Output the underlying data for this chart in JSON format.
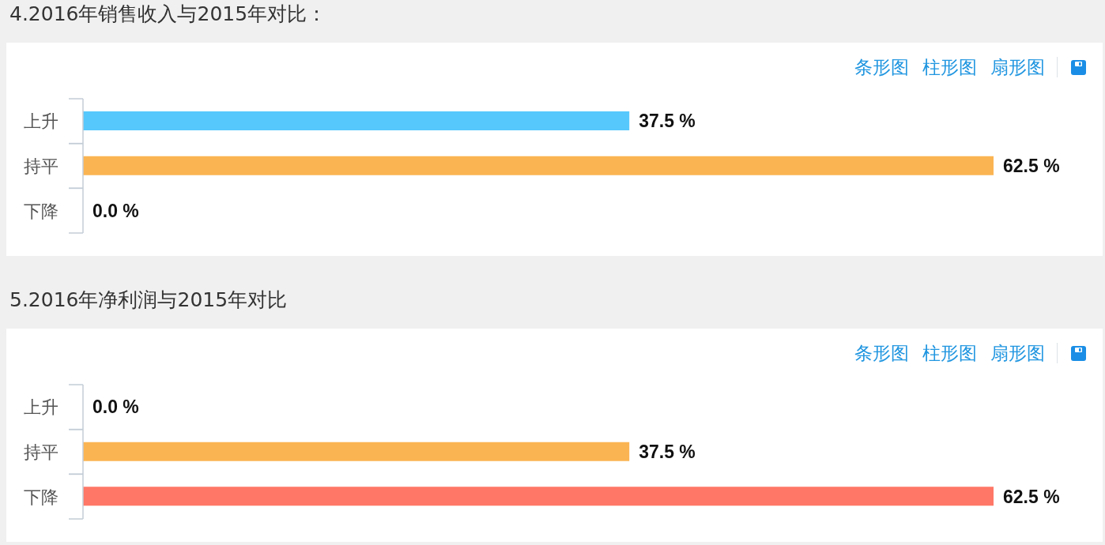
{
  "chart_data": [
    {
      "type": "bar",
      "orientation": "horizontal",
      "title": "4.2016年销售收入与2015年对比：",
      "categories": [
        "上升",
        "持平",
        "下降"
      ],
      "values": [
        37.5,
        62.5,
        0.0
      ],
      "colors": [
        "#56c8fc",
        "#fbb452",
        "#ff7766"
      ],
      "value_labels": [
        "37.5 %",
        "62.5 %",
        "0.0 %"
      ],
      "tick_labels": "y",
      "annotations": [
        "条形图",
        "柱形图",
        "扇形图"
      ]
    },
    {
      "type": "bar",
      "orientation": "horizontal",
      "title": "5.2016年净利润与2015年对比",
      "categories": [
        "上升",
        "持平",
        "下降"
      ],
      "values": [
        0.0,
        37.5,
        62.5
      ],
      "colors": [
        "#56c8fc",
        "#fbb452",
        "#ff7766"
      ],
      "value_labels": [
        "0.0 %",
        "37.5 %",
        "62.5 %"
      ],
      "tick_labels": "y",
      "annotations": [
        "条形图",
        "柱形图",
        "扇形图"
      ]
    }
  ]
}
